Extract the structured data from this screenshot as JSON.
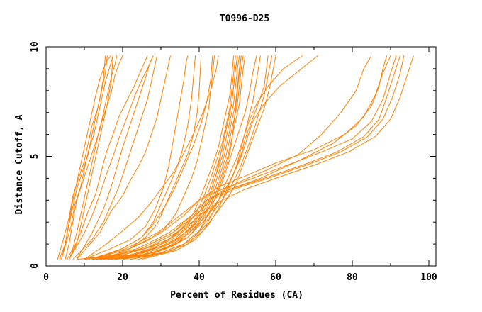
{
  "chart_data": {
    "type": "line",
    "title": "T0996-D25",
    "xlabel": "Percent of Residues (CA)",
    "ylabel": "Distance Cutoff, A",
    "xlim": [
      0,
      102
    ],
    "ylim": [
      0,
      10
    ],
    "x_ticks": [
      0,
      20,
      40,
      60,
      80,
      100
    ],
    "y_ticks": [
      0,
      5,
      10
    ],
    "x_tick_labels": [
      "0",
      "20",
      "40",
      "60",
      "80",
      "100"
    ],
    "y_tick_labels": [
      "0",
      "5",
      "10"
    ],
    "grid": false,
    "legend": "none",
    "line_color": "#ff8000",
    "series": [
      {
        "x": [
          3.5,
          5,
          6,
          7,
          8,
          9,
          10,
          11,
          12,
          13,
          14,
          15,
          16,
          17
        ],
        "y": [
          0.3,
          1.0,
          2.0,
          3.0,
          3.8,
          4.6,
          5.4,
          6.2,
          7.0,
          7.8,
          8.5,
          9.0,
          9.4,
          9.6
        ]
      },
      {
        "x": [
          4,
          5,
          6.5,
          7.5,
          9,
          10,
          11,
          12.5,
          13.5,
          14.5,
          15.5,
          16.5,
          17.5
        ],
        "y": [
          0.3,
          0.9,
          1.8,
          2.8,
          3.6,
          4.4,
          5.2,
          6.0,
          6.8,
          7.6,
          8.4,
          9.0,
          9.6
        ]
      },
      {
        "x": [
          3,
          4.5,
          6,
          7,
          8.5,
          10,
          11,
          12,
          13.5,
          14.5,
          15.5,
          16
        ],
        "y": [
          0.3,
          1.2,
          2.2,
          3.2,
          4.0,
          4.8,
          5.6,
          6.4,
          7.2,
          8.0,
          8.8,
          9.6
        ]
      },
      {
        "x": [
          5,
          6,
          7,
          8,
          9.5,
          11,
          12.5,
          14,
          15,
          16,
          17,
          18,
          18.5
        ],
        "y": [
          0.3,
          1.0,
          2.0,
          3.0,
          3.8,
          4.6,
          5.4,
          6.2,
          7.0,
          7.8,
          8.6,
          9.2,
          9.6
        ]
      },
      {
        "x": [
          4,
          5,
          6,
          7,
          8,
          9.5,
          11,
          12,
          13,
          14,
          15,
          15.5
        ],
        "y": [
          0.3,
          1.0,
          1.9,
          2.7,
          3.5,
          4.3,
          5.1,
          6.0,
          6.8,
          7.6,
          8.6,
          9.6
        ]
      },
      {
        "x": [
          5.5,
          7,
          8,
          9,
          10,
          11,
          12,
          13,
          14,
          15.5,
          17,
          18,
          19,
          20
        ],
        "y": [
          0.3,
          0.8,
          1.5,
          2.3,
          3.1,
          3.9,
          4.7,
          5.5,
          6.3,
          7.1,
          7.9,
          8.7,
          9.2,
          9.6
        ]
      },
      {
        "x": [
          6,
          8,
          9,
          10,
          11,
          12,
          13,
          14,
          15,
          16,
          17,
          17.5
        ],
        "y": [
          0.3,
          1.0,
          1.8,
          2.6,
          3.4,
          4.2,
          5.0,
          5.8,
          6.6,
          7.4,
          8.4,
          9.6
        ]
      },
      {
        "x": [
          6,
          9,
          11,
          13,
          14,
          15,
          16,
          17.5,
          19,
          21,
          23,
          24.5,
          25.5,
          26.5
        ],
        "y": [
          0.3,
          1.5,
          2.5,
          3.3,
          4.0,
          4.7,
          5.3,
          6.0,
          6.8,
          7.5,
          8.2,
          8.8,
          9.2,
          9.6
        ]
      },
      {
        "x": [
          6,
          10,
          12.5,
          14.5,
          16,
          17.5,
          19,
          20.5,
          22,
          23.5,
          25,
          26.5,
          27.5,
          28
        ],
        "y": [
          0.3,
          1.5,
          2.5,
          3.5,
          4.3,
          5.0,
          5.8,
          6.5,
          7.2,
          7.9,
          8.5,
          9.0,
          9.4,
          9.6
        ]
      },
      {
        "x": [
          8,
          12,
          15,
          17,
          18.5,
          20,
          21.5,
          23,
          24.5,
          26,
          27,
          28
        ],
        "y": [
          0.3,
          1.5,
          2.6,
          3.6,
          4.5,
          5.4,
          6.2,
          7.0,
          7.8,
          8.6,
          9.2,
          9.6
        ]
      },
      {
        "x": [
          7,
          12,
          15,
          17,
          19,
          20.5,
          22,
          23.5,
          25,
          26.5,
          27.5,
          28.5,
          29
        ],
        "y": [
          0.3,
          1.2,
          2.0,
          2.8,
          3.6,
          4.4,
          5.2,
          6.0,
          6.8,
          7.6,
          8.4,
          9.2,
          9.6
        ]
      },
      {
        "x": [
          8,
          14,
          17,
          20,
          22,
          24,
          26,
          27.5,
          29,
          30,
          31,
          32,
          32.5
        ],
        "y": [
          0.3,
          1.5,
          2.5,
          3.2,
          3.9,
          4.5,
          5.2,
          6.0,
          6.8,
          7.6,
          8.4,
          9.2,
          9.6
        ]
      },
      {
        "x": [
          10,
          17,
          22,
          26,
          28.5,
          30.5,
          32,
          33,
          34,
          35,
          36,
          36.5,
          37
        ],
        "y": [
          0.3,
          0.8,
          1.2,
          1.8,
          2.6,
          3.5,
          4.5,
          5.5,
          6.5,
          7.5,
          8.5,
          9.2,
          9.6
        ]
      },
      {
        "x": [
          12,
          20,
          25,
          28,
          30,
          32,
          34,
          35.5,
          37,
          38,
          39
        ],
        "y": [
          0.3,
          0.8,
          1.3,
          2.0,
          2.8,
          3.6,
          4.4,
          5.2,
          6.4,
          7.6,
          9.6
        ]
      },
      {
        "x": [
          15,
          22,
          26,
          29,
          31,
          33,
          35,
          37,
          38.5,
          39.5,
          40,
          40.5
        ],
        "y": [
          0.3,
          0.8,
          1.3,
          1.9,
          2.7,
          3.5,
          4.3,
          5.1,
          6.0,
          7.0,
          8.0,
          9.6
        ]
      },
      {
        "x": [
          13,
          20,
          25,
          28,
          31,
          33.5,
          36,
          38.5,
          40.5,
          42,
          43,
          43.5
        ],
        "y": [
          0.3,
          0.8,
          1.3,
          1.9,
          2.7,
          3.5,
          4.5,
          5.5,
          6.5,
          7.5,
          8.5,
          9.6
        ]
      },
      {
        "x": [
          15,
          22,
          27,
          31,
          34,
          36,
          38,
          39.5,
          40.5,
          41.5,
          42.5,
          43,
          43.5,
          44
        ],
        "y": [
          0.3,
          0.8,
          1.2,
          1.7,
          2.4,
          3.2,
          4.0,
          4.8,
          5.6,
          6.4,
          7.2,
          8.0,
          8.8,
          9.6
        ]
      },
      {
        "x": [
          10,
          15,
          20,
          24,
          27,
          30,
          33,
          35,
          37,
          39,
          41,
          43,
          44.5,
          45
        ],
        "y": [
          0.3,
          0.9,
          1.6,
          2.2,
          2.8,
          3.5,
          4.2,
          4.8,
          5.5,
          6.2,
          7.0,
          8.0,
          9.0,
          9.6
        ]
      },
      {
        "x": [
          8,
          18,
          26,
          32,
          36,
          38.5,
          40.5,
          42,
          43.5,
          45,
          46,
          47,
          48,
          48.5,
          49
        ],
        "y": [
          0.3,
          0.5,
          0.8,
          1.2,
          1.8,
          2.4,
          3.2,
          3.9,
          4.6,
          5.4,
          6.2,
          7.0,
          7.8,
          8.6,
          9.6
        ]
      },
      {
        "x": [
          10,
          20,
          28,
          33,
          37,
          39.5,
          41.5,
          43,
          44.5,
          46,
          47,
          48,
          48.5,
          49,
          49.5
        ],
        "y": [
          0.3,
          0.5,
          0.9,
          1.3,
          1.9,
          2.5,
          3.3,
          4.0,
          4.8,
          5.6,
          6.4,
          7.2,
          8.0,
          8.8,
          9.6
        ]
      },
      {
        "x": [
          12,
          22,
          29,
          34,
          38,
          40.5,
          42.5,
          44,
          45.5,
          46.5,
          47.5,
          48.5,
          49,
          49.5,
          50
        ],
        "y": [
          0.3,
          0.5,
          0.9,
          1.3,
          1.9,
          2.6,
          3.4,
          4.2,
          5.0,
          5.8,
          6.6,
          7.4,
          8.2,
          9.0,
          9.6
        ]
      },
      {
        "x": [
          14,
          24,
          30,
          35,
          38.5,
          41,
          43,
          44.5,
          46,
          47,
          48,
          49,
          49.5,
          50,
          50.5
        ],
        "y": [
          0.3,
          0.5,
          0.9,
          1.3,
          1.9,
          2.6,
          3.4,
          4.2,
          5.0,
          5.8,
          6.6,
          7.4,
          8.2,
          9.0,
          9.6
        ]
      },
      {
        "x": [
          16,
          25,
          31,
          35.5,
          39,
          41.5,
          43.5,
          45,
          46.5,
          47.5,
          48.5,
          49.5,
          50,
          50.5,
          51
        ],
        "y": [
          0.3,
          0.5,
          0.9,
          1.3,
          1.9,
          2.6,
          3.4,
          4.2,
          5.0,
          5.8,
          6.6,
          7.4,
          8.2,
          9.0,
          9.6
        ]
      },
      {
        "x": [
          17,
          26,
          32,
          36,
          39.5,
          42,
          44,
          45.5,
          47,
          48,
          49,
          50,
          50.5,
          51,
          51.5
        ],
        "y": [
          0.3,
          0.5,
          0.9,
          1.3,
          1.9,
          2.6,
          3.4,
          4.2,
          5.0,
          5.8,
          6.6,
          7.4,
          8.2,
          9.0,
          9.6
        ]
      },
      {
        "x": [
          13,
          23,
          30,
          35,
          38.5,
          41,
          43,
          44.5,
          45.5,
          46.5,
          47.5,
          48.5,
          49,
          49.5,
          50
        ],
        "y": [
          0.3,
          0.5,
          0.9,
          1.3,
          1.9,
          2.6,
          3.4,
          4.2,
          5.0,
          5.8,
          6.6,
          7.4,
          8.2,
          9.0,
          9.6
        ]
      },
      {
        "x": [
          18,
          27,
          33,
          37,
          40,
          42.5,
          44.5,
          46,
          47.5,
          48.5,
          49.5,
          50.5,
          51,
          51.5,
          52
        ],
        "y": [
          0.3,
          0.5,
          0.9,
          1.3,
          1.9,
          2.6,
          3.4,
          4.2,
          5.0,
          5.8,
          6.6,
          7.4,
          8.2,
          9.0,
          9.6
        ]
      },
      {
        "x": [
          22,
          30,
          36,
          40,
          42.5,
          44.5,
          46,
          47.5,
          48.5,
          49,
          49.5,
          50,
          50.5,
          51
        ],
        "y": [
          0.3,
          0.6,
          1.0,
          1.6,
          2.4,
          3.2,
          4.0,
          4.8,
          5.6,
          6.4,
          7.2,
          8.0,
          8.8,
          9.6
        ]
      },
      {
        "x": [
          15,
          25,
          32,
          37,
          41,
          44,
          46,
          47.5,
          49,
          50.5,
          52,
          53,
          54,
          55
        ],
        "y": [
          0.3,
          0.6,
          1.0,
          1.6,
          2.3,
          3.0,
          3.8,
          4.6,
          5.4,
          6.2,
          7.0,
          7.8,
          8.8,
          9.6
        ]
      },
      {
        "x": [
          20,
          30,
          37,
          41,
          44,
          46.5,
          48.5,
          50,
          51,
          52,
          53,
          54,
          55,
          56
        ],
        "y": [
          0.3,
          0.7,
          1.3,
          2.0,
          2.7,
          3.4,
          4.0,
          4.7,
          5.4,
          6.1,
          6.8,
          7.5,
          8.5,
          9.6
        ]
      },
      {
        "x": [
          18,
          28,
          34,
          38,
          42,
          45,
          47.5,
          49.5,
          51,
          52,
          53.5,
          55,
          57,
          58
        ],
        "y": [
          0.3,
          0.6,
          1.0,
          1.6,
          2.3,
          3.0,
          3.7,
          4.4,
          5.1,
          5.8,
          6.5,
          7.2,
          8.2,
          9.6
        ]
      },
      {
        "x": [
          20,
          30,
          36,
          40,
          43,
          46,
          48.5,
          50.5,
          52,
          53.5,
          55,
          57,
          59
        ],
        "y": [
          0.3,
          0.6,
          1.0,
          1.6,
          2.3,
          3.0,
          3.7,
          4.4,
          5.1,
          5.8,
          6.6,
          7.8,
          9.6
        ]
      },
      {
        "x": [
          22,
          31,
          37,
          41,
          44,
          47,
          49.5,
          51,
          52.5,
          54,
          55.5,
          57,
          58.5,
          60
        ],
        "y": [
          0.3,
          0.6,
          1.0,
          1.6,
          2.3,
          3.0,
          3.7,
          4.4,
          5.1,
          5.8,
          6.5,
          7.2,
          8.2,
          9.6
        ]
      },
      {
        "x": [
          24,
          33,
          38,
          42,
          44,
          46,
          48,
          50,
          51.5,
          53,
          55,
          58,
          62,
          67
        ],
        "y": [
          0.3,
          0.7,
          1.2,
          1.9,
          2.6,
          3.4,
          4.2,
          5.0,
          5.8,
          6.6,
          7.4,
          8.2,
          9.0,
          9.6
        ]
      },
      {
        "x": [
          25,
          34,
          39,
          42.5,
          45,
          47,
          49,
          51,
          52.5,
          54,
          57,
          61,
          66,
          71
        ],
        "y": [
          0.3,
          0.7,
          1.2,
          1.9,
          2.6,
          3.4,
          4.2,
          5.0,
          5.8,
          6.6,
          7.4,
          8.2,
          8.9,
          9.6
        ]
      },
      {
        "x": [
          14,
          25,
          33,
          39,
          44,
          50,
          58,
          66,
          72,
          77,
          81,
          83,
          85
        ],
        "y": [
          0.3,
          0.8,
          1.5,
          2.3,
          3.2,
          3.8,
          4.4,
          5.1,
          6.0,
          7.0,
          8.0,
          9.0,
          9.6
        ]
      },
      {
        "x": [
          13,
          24,
          32,
          38,
          42,
          48,
          56,
          66,
          75,
          81,
          85,
          87,
          88,
          89
        ],
        "y": [
          0.3,
          0.8,
          1.5,
          2.3,
          3.0,
          3.5,
          4.0,
          4.8,
          5.6,
          6.4,
          7.3,
          8.2,
          9.0,
          9.6
        ]
      },
      {
        "x": [
          12,
          22,
          30,
          36,
          40,
          45,
          52,
          60,
          70,
          78,
          83,
          86,
          88,
          90
        ],
        "y": [
          0.3,
          0.8,
          1.5,
          2.3,
          3.0,
          3.6,
          4.1,
          4.7,
          5.3,
          6.0,
          6.8,
          7.8,
          8.8,
          9.6
        ]
      },
      {
        "x": [
          11,
          21,
          29,
          35,
          40,
          46,
          54,
          63,
          72,
          80,
          85,
          88,
          90,
          91.5
        ],
        "y": [
          0.3,
          0.8,
          1.5,
          2.3,
          3.0,
          3.5,
          4.0,
          4.6,
          5.2,
          5.8,
          6.6,
          7.6,
          8.8,
          9.6
        ]
      },
      {
        "x": [
          15,
          25,
          33,
          38,
          42,
          48,
          57,
          67,
          76,
          83,
          87,
          89,
          91,
          92.5
        ],
        "y": [
          0.3,
          0.8,
          1.5,
          2.3,
          3.0,
          3.5,
          4.0,
          4.6,
          5.2,
          5.9,
          6.7,
          7.7,
          8.8,
          9.6
        ]
      },
      {
        "x": [
          16,
          26,
          34,
          39,
          43,
          49,
          58,
          68,
          77,
          84,
          88,
          90.5,
          92.5,
          93.5
        ],
        "y": [
          0.3,
          0.8,
          1.5,
          2.3,
          3.0,
          3.5,
          4.0,
          4.6,
          5.2,
          5.9,
          6.7,
          7.7,
          8.8,
          9.6
        ]
      },
      {
        "x": [
          18,
          28,
          35,
          40,
          46,
          52,
          60,
          70,
          79,
          86,
          90,
          92.5,
          94.5,
          96
        ],
        "y": [
          0.3,
          0.8,
          1.5,
          2.3,
          3.0,
          3.5,
          4.0,
          4.6,
          5.2,
          5.9,
          6.7,
          7.7,
          8.8,
          9.6
        ]
      }
    ]
  }
}
